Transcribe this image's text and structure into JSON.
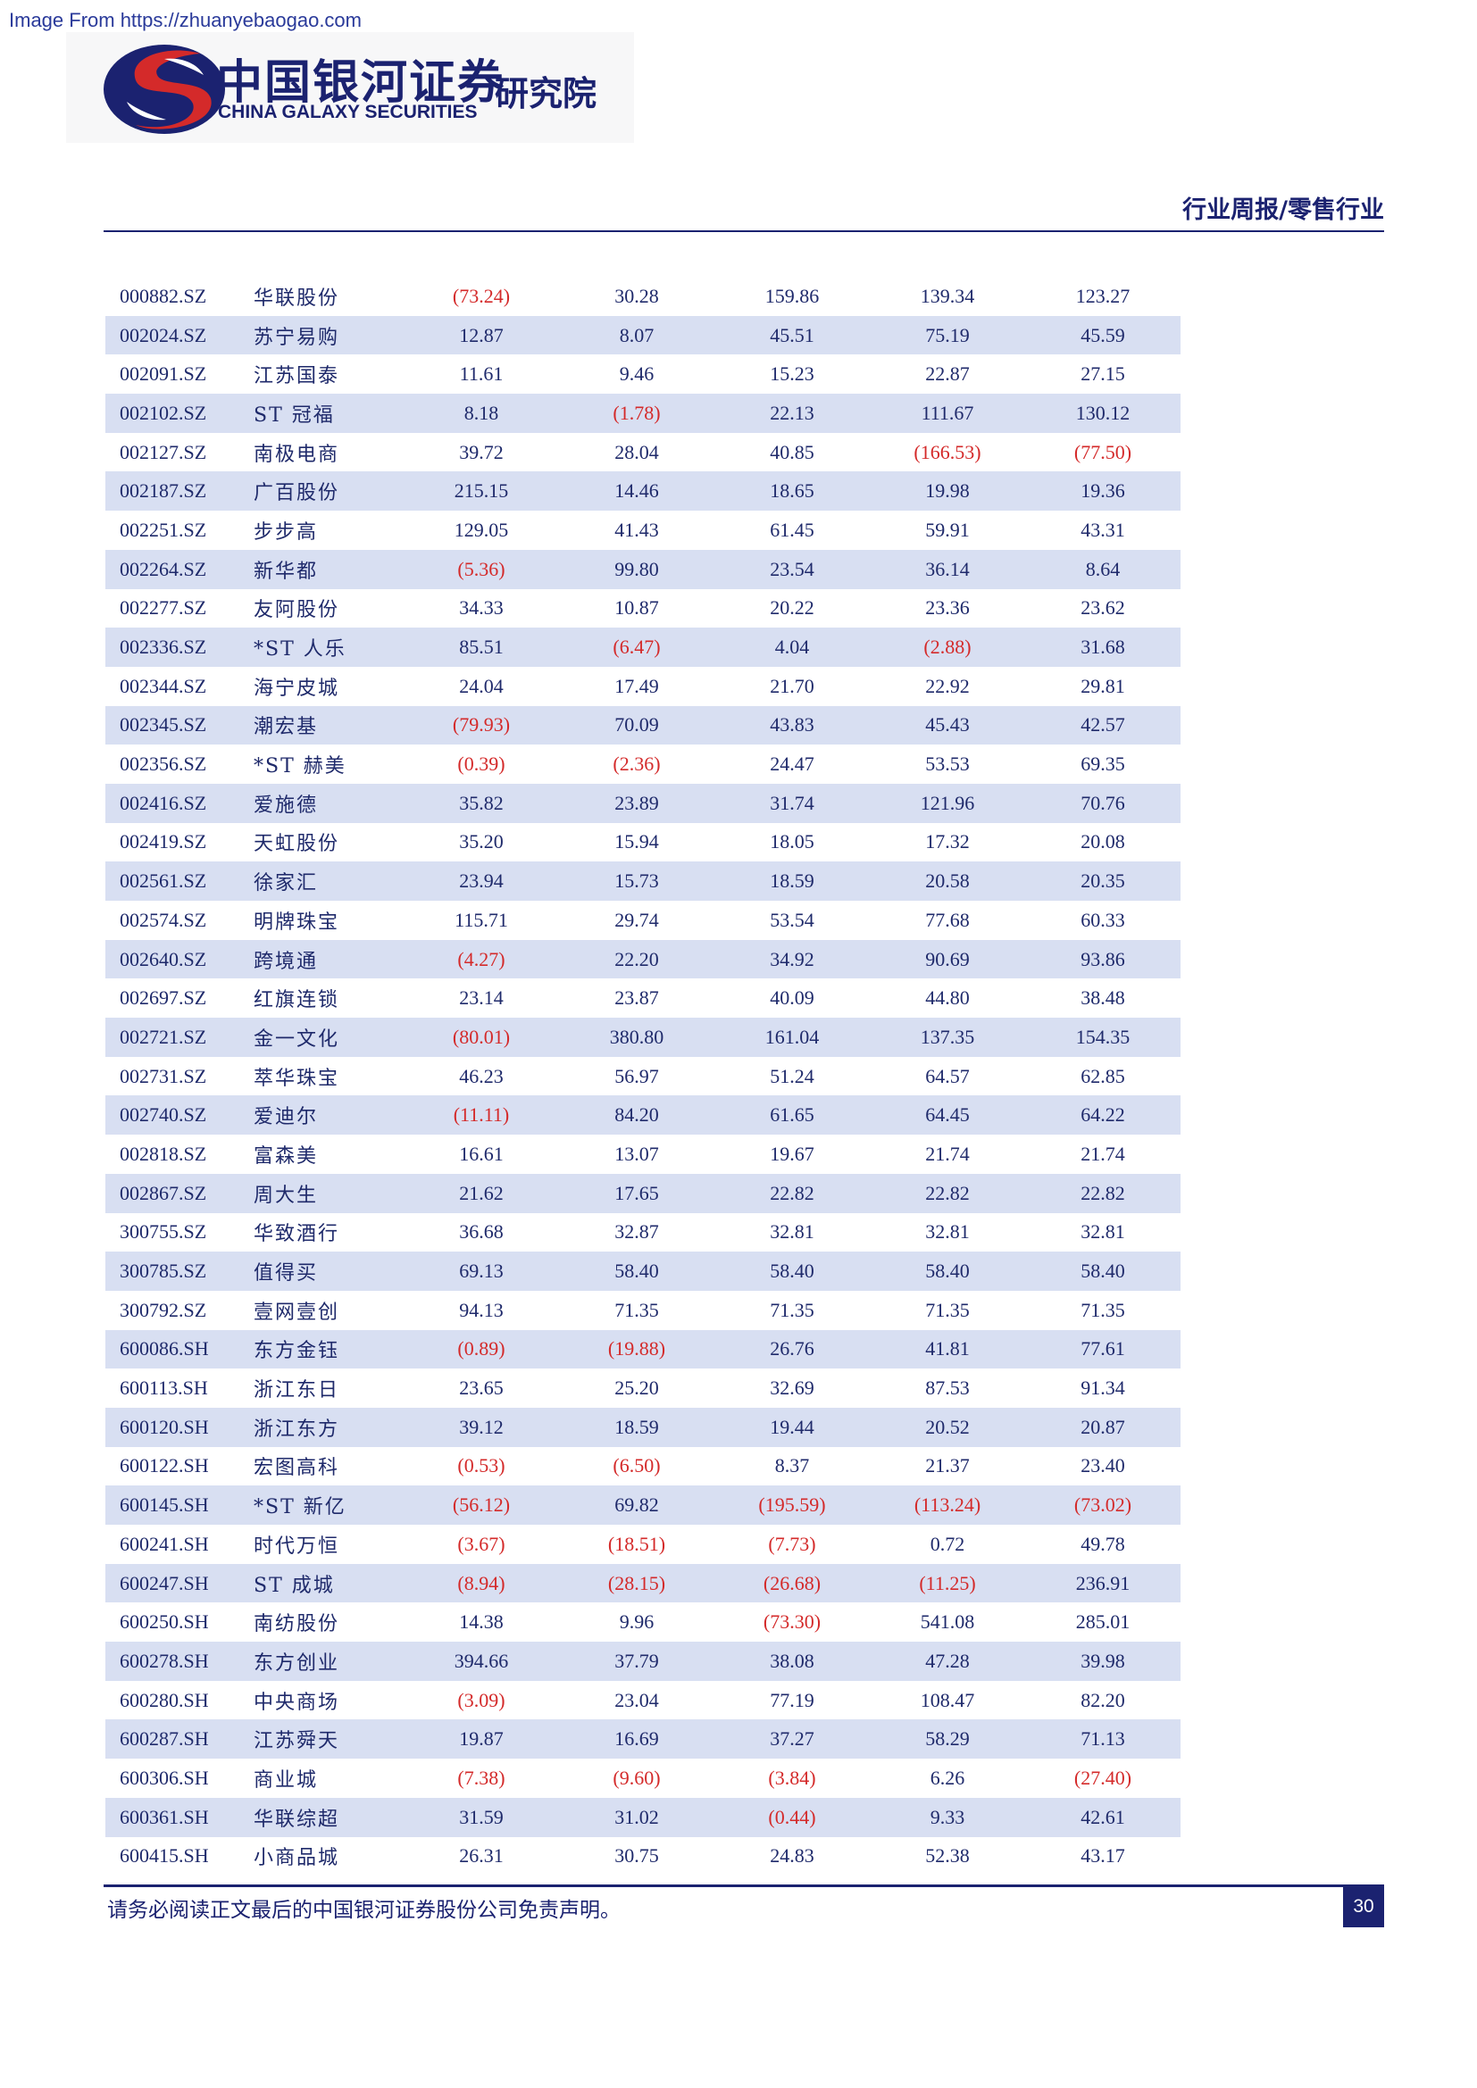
{
  "watermark": "Image From https://zhuanyebaogao.com",
  "brand": {
    "name_cn": "中国银河证券",
    "name_en": "CHINA GALAXY SECURITIES",
    "institute": "研究院",
    "colors": {
      "navy": "#1b2270",
      "red": "#d42a2a"
    }
  },
  "header": {
    "report_type": "行业周报/零售行业"
  },
  "table": {
    "rows": [
      {
        "code": "000882.SZ",
        "name": "华联股份",
        "values": [
          "(73.24)",
          "30.28",
          "159.86",
          "139.34",
          "123.27"
        ]
      },
      {
        "code": "002024.SZ",
        "name": "苏宁易购",
        "values": [
          "12.87",
          "8.07",
          "45.51",
          "75.19",
          "45.59"
        ]
      },
      {
        "code": "002091.SZ",
        "name": "江苏国泰",
        "values": [
          "11.61",
          "9.46",
          "15.23",
          "22.87",
          "27.15"
        ]
      },
      {
        "code": "002102.SZ",
        "name": "ST 冠福",
        "values": [
          "8.18",
          "(1.78)",
          "22.13",
          "111.67",
          "130.12"
        ]
      },
      {
        "code": "002127.SZ",
        "name": "南极电商",
        "values": [
          "39.72",
          "28.04",
          "40.85",
          "(166.53)",
          "(77.50)"
        ]
      },
      {
        "code": "002187.SZ",
        "name": "广百股份",
        "values": [
          "215.15",
          "14.46",
          "18.65",
          "19.98",
          "19.36"
        ]
      },
      {
        "code": "002251.SZ",
        "name": "步步高",
        "values": [
          "129.05",
          "41.43",
          "61.45",
          "59.91",
          "43.31"
        ]
      },
      {
        "code": "002264.SZ",
        "name": "新华都",
        "values": [
          "(5.36)",
          "99.80",
          "23.54",
          "36.14",
          "8.64"
        ]
      },
      {
        "code": "002277.SZ",
        "name": "友阿股份",
        "values": [
          "34.33",
          "10.87",
          "20.22",
          "23.36",
          "23.62"
        ]
      },
      {
        "code": "002336.SZ",
        "name": "*ST 人乐",
        "values": [
          "85.51",
          "(6.47)",
          "4.04",
          "(2.88)",
          "31.68"
        ]
      },
      {
        "code": "002344.SZ",
        "name": "海宁皮城",
        "values": [
          "24.04",
          "17.49",
          "21.70",
          "22.92",
          "29.81"
        ]
      },
      {
        "code": "002345.SZ",
        "name": "潮宏基",
        "values": [
          "(79.93)",
          "70.09",
          "43.83",
          "45.43",
          "42.57"
        ]
      },
      {
        "code": "002356.SZ",
        "name": "*ST 赫美",
        "values": [
          "(0.39)",
          "(2.36)",
          "24.47",
          "53.53",
          "69.35"
        ]
      },
      {
        "code": "002416.SZ",
        "name": "爱施德",
        "values": [
          "35.82",
          "23.89",
          "31.74",
          "121.96",
          "70.76"
        ]
      },
      {
        "code": "002419.SZ",
        "name": "天虹股份",
        "values": [
          "35.20",
          "15.94",
          "18.05",
          "17.32",
          "20.08"
        ]
      },
      {
        "code": "002561.SZ",
        "name": "徐家汇",
        "values": [
          "23.94",
          "15.73",
          "18.59",
          "20.58",
          "20.35"
        ]
      },
      {
        "code": "002574.SZ",
        "name": "明牌珠宝",
        "values": [
          "115.71",
          "29.74",
          "53.54",
          "77.68",
          "60.33"
        ]
      },
      {
        "code": "002640.SZ",
        "name": "跨境通",
        "values": [
          "(4.27)",
          "22.20",
          "34.92",
          "90.69",
          "93.86"
        ]
      },
      {
        "code": "002697.SZ",
        "name": "红旗连锁",
        "values": [
          "23.14",
          "23.87",
          "40.09",
          "44.80",
          "38.48"
        ]
      },
      {
        "code": "002721.SZ",
        "name": "金一文化",
        "values": [
          "(80.01)",
          "380.80",
          "161.04",
          "137.35",
          "154.35"
        ]
      },
      {
        "code": "002731.SZ",
        "name": "萃华珠宝",
        "values": [
          "46.23",
          "56.97",
          "51.24",
          "64.57",
          "62.85"
        ]
      },
      {
        "code": "002740.SZ",
        "name": "爱迪尔",
        "values": [
          "(11.11)",
          "84.20",
          "61.65",
          "64.45",
          "64.22"
        ]
      },
      {
        "code": "002818.SZ",
        "name": "富森美",
        "values": [
          "16.61",
          "13.07",
          "19.67",
          "21.74",
          "21.74"
        ]
      },
      {
        "code": "002867.SZ",
        "name": "周大生",
        "values": [
          "21.62",
          "17.65",
          "22.82",
          "22.82",
          "22.82"
        ]
      },
      {
        "code": "300755.SZ",
        "name": "华致酒行",
        "values": [
          "36.68",
          "32.87",
          "32.81",
          "32.81",
          "32.81"
        ]
      },
      {
        "code": "300785.SZ",
        "name": "值得买",
        "values": [
          "69.13",
          "58.40",
          "58.40",
          "58.40",
          "58.40"
        ]
      },
      {
        "code": "300792.SZ",
        "name": "壹网壹创",
        "values": [
          "94.13",
          "71.35",
          "71.35",
          "71.35",
          "71.35"
        ]
      },
      {
        "code": "600086.SH",
        "name": "东方金钰",
        "values": [
          "(0.89)",
          "(19.88)",
          "26.76",
          "41.81",
          "77.61"
        ]
      },
      {
        "code": "600113.SH",
        "name": "浙江东日",
        "values": [
          "23.65",
          "25.20",
          "32.69",
          "87.53",
          "91.34"
        ]
      },
      {
        "code": "600120.SH",
        "name": "浙江东方",
        "values": [
          "39.12",
          "18.59",
          "19.44",
          "20.52",
          "20.87"
        ]
      },
      {
        "code": "600122.SH",
        "name": "宏图高科",
        "values": [
          "(0.53)",
          "(6.50)",
          "8.37",
          "21.37",
          "23.40"
        ]
      },
      {
        "code": "600145.SH",
        "name": "*ST 新亿",
        "values": [
          "(56.12)",
          "69.82",
          "(195.59)",
          "(113.24)",
          "(73.02)"
        ]
      },
      {
        "code": "600241.SH",
        "name": "时代万恒",
        "values": [
          "(3.67)",
          "(18.51)",
          "(7.73)",
          "0.72",
          "49.78"
        ]
      },
      {
        "code": "600247.SH",
        "name": "ST 成城",
        "values": [
          "(8.94)",
          "(28.15)",
          "(26.68)",
          "(11.25)",
          "236.91"
        ]
      },
      {
        "code": "600250.SH",
        "name": "南纺股份",
        "values": [
          "14.38",
          "9.96",
          "(73.30)",
          "541.08",
          "285.01"
        ]
      },
      {
        "code": "600278.SH",
        "name": "东方创业",
        "values": [
          "394.66",
          "37.79",
          "38.08",
          "47.28",
          "39.98"
        ]
      },
      {
        "code": "600280.SH",
        "name": "中央商场",
        "values": [
          "(3.09)",
          "23.04",
          "77.19",
          "108.47",
          "82.20"
        ]
      },
      {
        "code": "600287.SH",
        "name": "江苏舜天",
        "values": [
          "19.87",
          "16.69",
          "37.27",
          "58.29",
          "71.13"
        ]
      },
      {
        "code": "600306.SH",
        "name": "商业城",
        "values": [
          "(7.38)",
          "(9.60)",
          "(3.84)",
          "6.26",
          "(27.40)"
        ]
      },
      {
        "code": "600361.SH",
        "name": "华联综超",
        "values": [
          "31.59",
          "31.02",
          "(0.44)",
          "9.33",
          "42.61"
        ]
      },
      {
        "code": "600415.SH",
        "name": "小商品城",
        "values": [
          "26.31",
          "30.75",
          "24.83",
          "52.38",
          "43.17"
        ]
      }
    ]
  },
  "footer": {
    "disclaimer": "请务必阅读正文最后的中国银河证券股份公司免责声明。",
    "page_number": "30"
  }
}
